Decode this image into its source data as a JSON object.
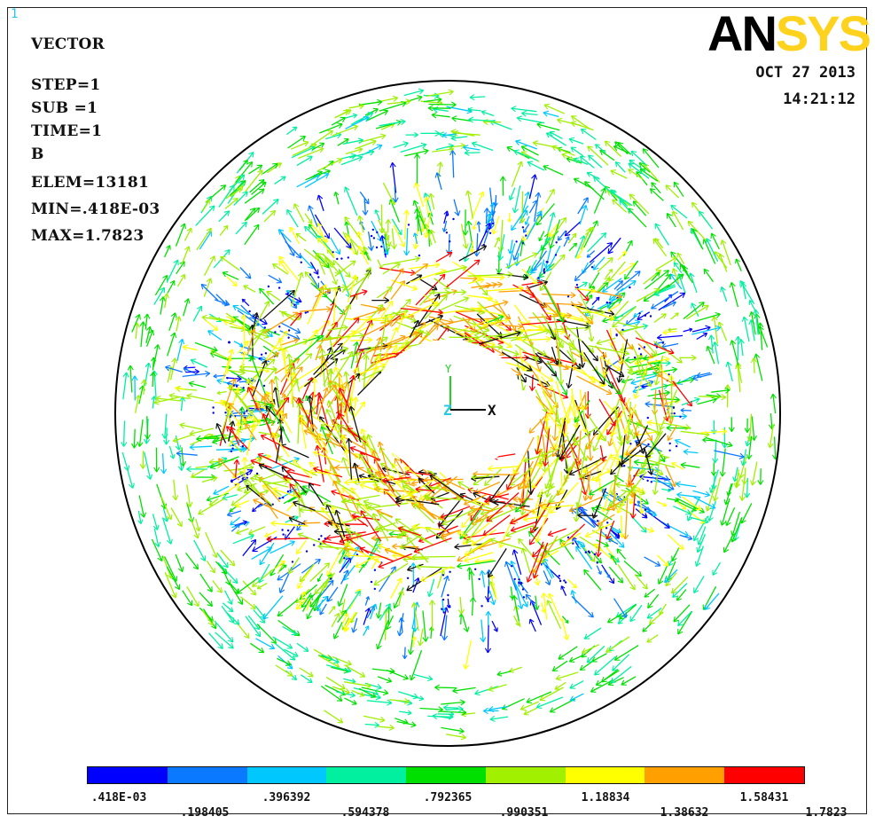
{
  "corner_number": "1",
  "logo": {
    "part1": "AN",
    "part2": "SYS"
  },
  "info_lines": [
    "VECTOR",
    "STEP=1",
    "SUB =1",
    "TIME=1",
    "B",
    "ELEM=13181",
    "MIN=.418E-03",
    "MAX=1.7823"
  ],
  "date": "OCT 27 2013",
  "time": "14:21:12",
  "axis_triad": {
    "y": "Y",
    "z": "Z",
    "x": "X"
  },
  "legend": {
    "colors": [
      "#0000ff",
      "#0a78ff",
      "#00c8ff",
      "#00f0a0",
      "#00e000",
      "#a0f000",
      "#ffff00",
      "#ffa000",
      "#ff0000"
    ],
    "labels_top": [
      ".418E-03",
      ".396392",
      ".792365",
      "1.18834",
      "1.58431"
    ],
    "labels_bottom": [
      ".198405",
      ".594378",
      ".990351",
      "1.38632",
      "1.7823"
    ]
  },
  "colors": {
    "frame": "#222222",
    "info_text": "#111111",
    "logo_yellow": "#ffd21e",
    "corner_number": "#27c7e8"
  }
}
